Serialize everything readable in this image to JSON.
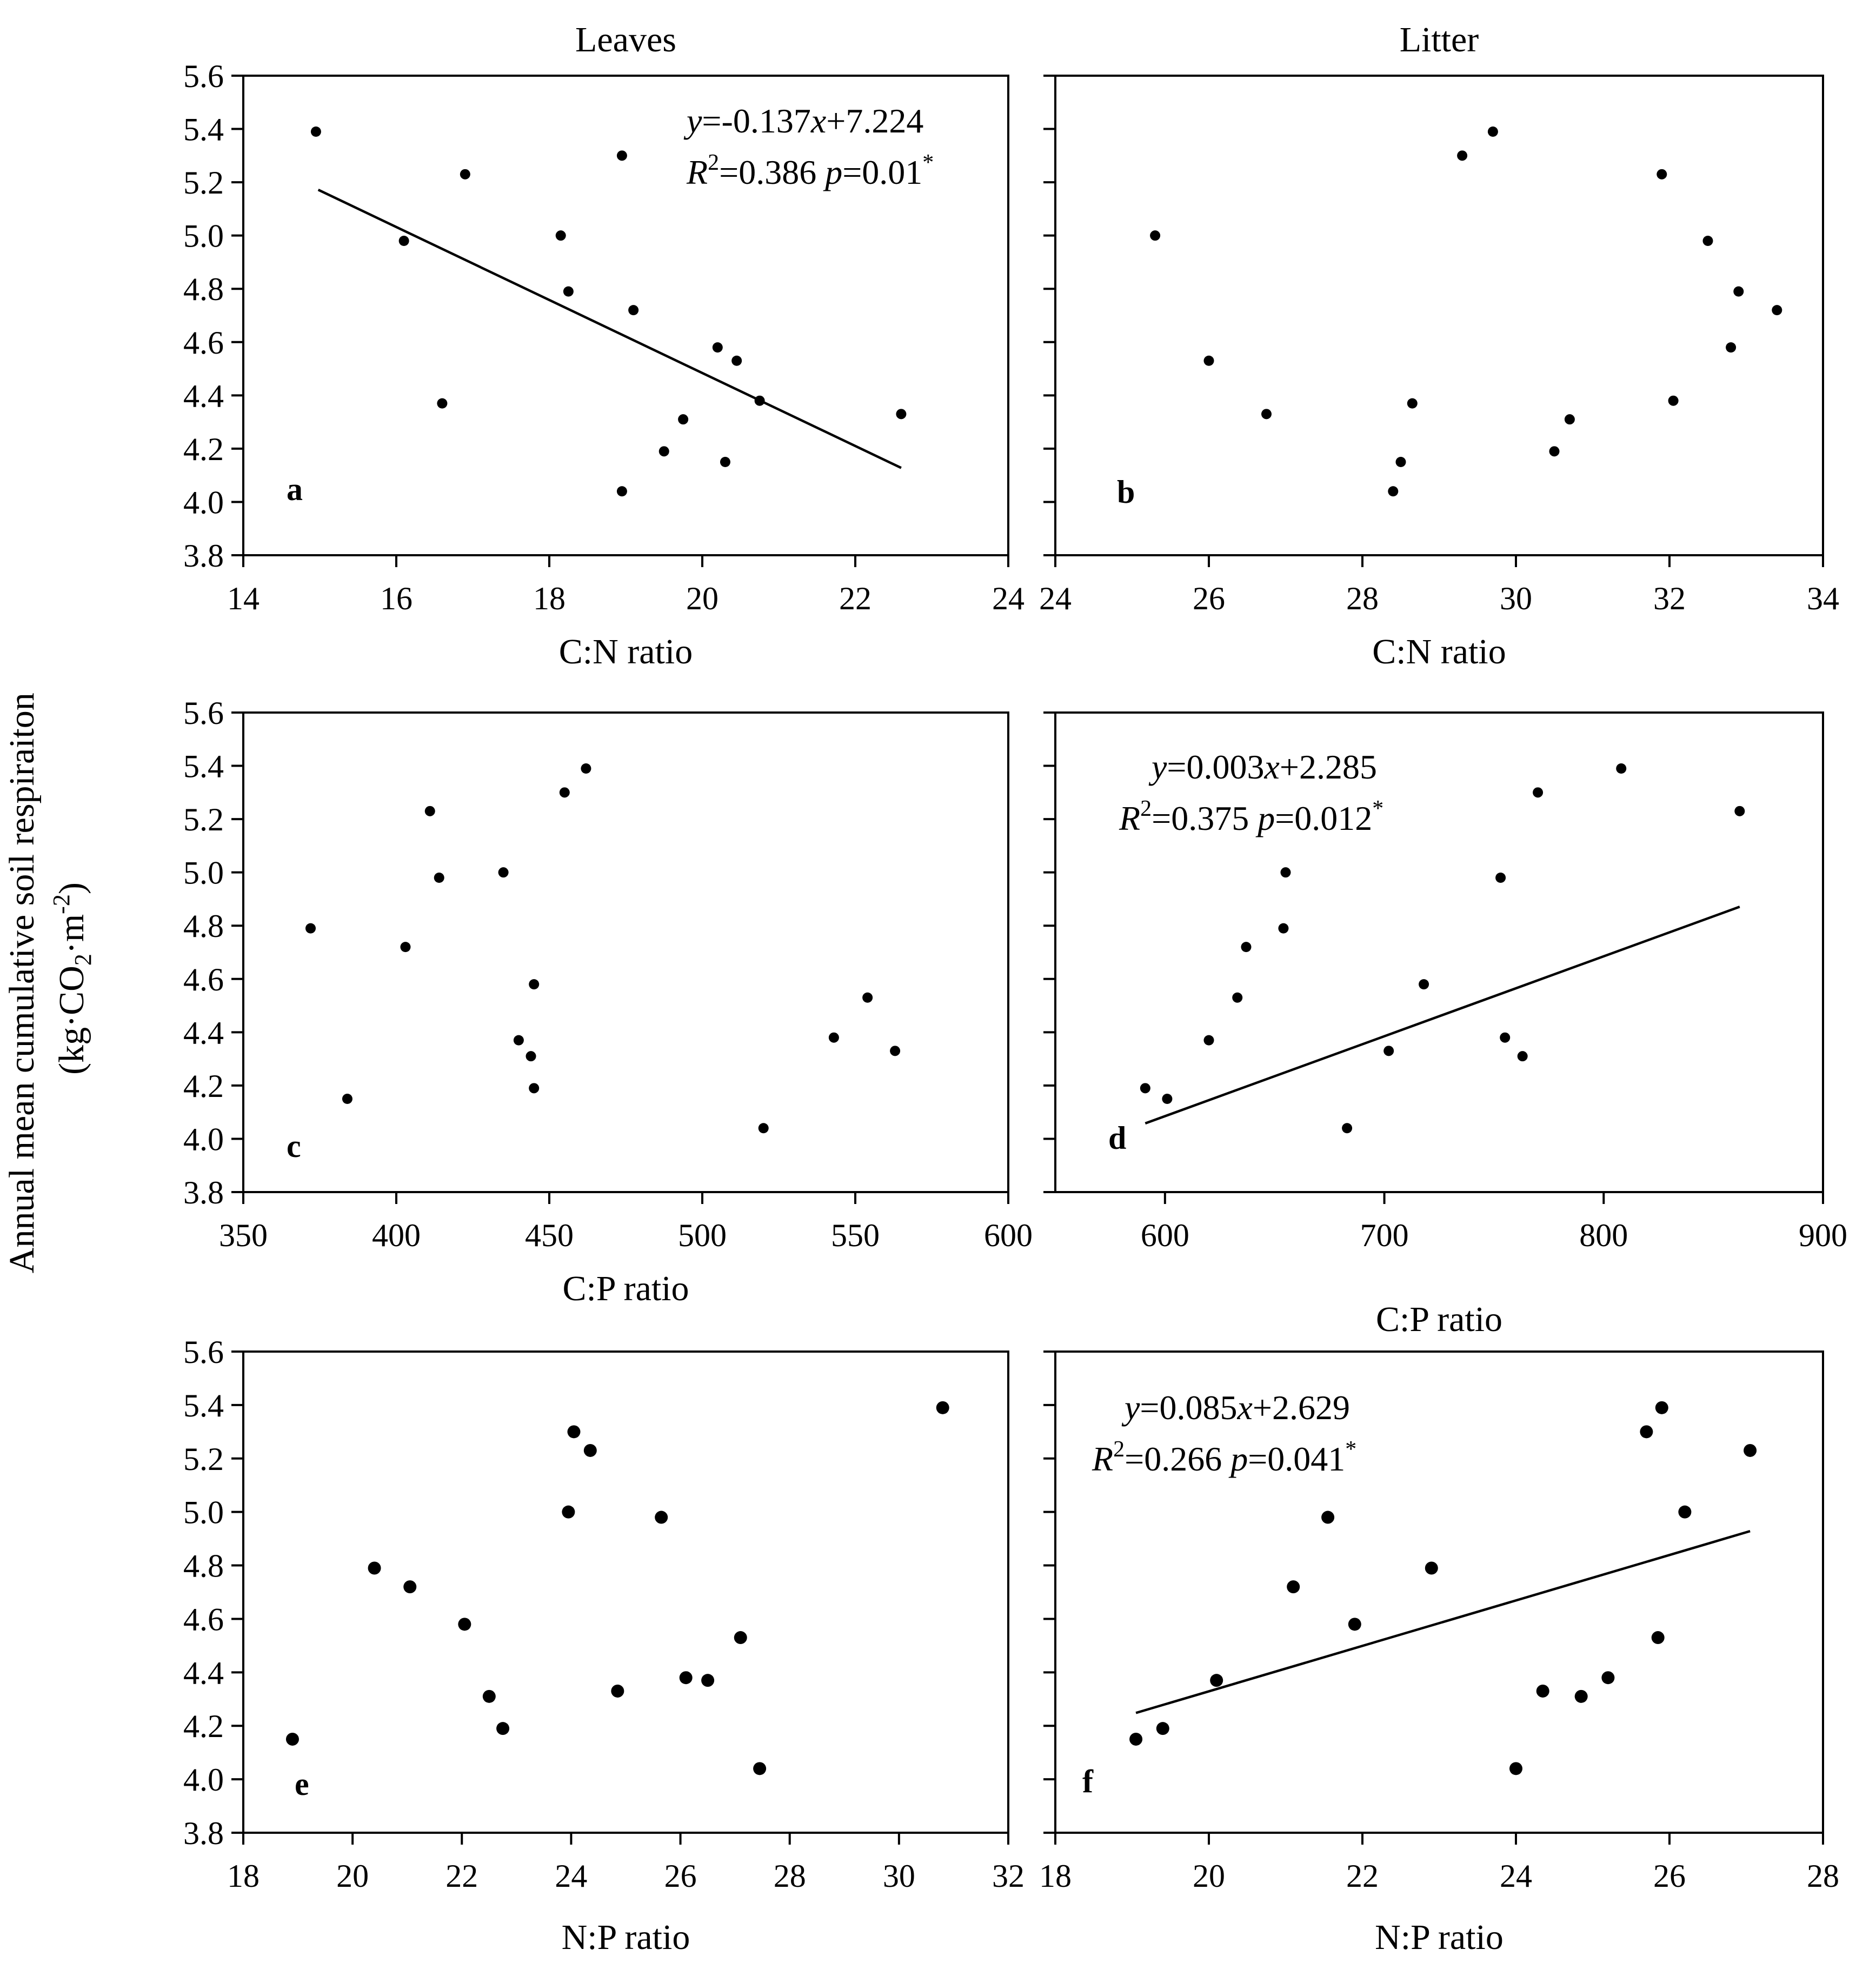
{
  "figure": {
    "y_axis_title_line1": "Annual mean cumulative soil respiraiton",
    "y_axis_title_line2_pre": "(kg·CO",
    "y_axis_title_line2_sub": "2",
    "y_axis_title_line2_mid": "·m",
    "y_axis_title_line2_sup": "-2",
    "y_axis_title_line2_post": ")"
  },
  "chart_data": [
    {
      "id": "a",
      "type": "scatter",
      "title": "Leaves",
      "panel_letter": "a",
      "xlabel": "C:N ratio",
      "ylabel": "Annual mean cumulative soil respiraiton (kg·CO2·m-2)",
      "xlim": [
        14,
        24
      ],
      "ylim": [
        3.8,
        5.6
      ],
      "xticks": [
        14,
        16,
        18,
        20,
        22,
        24
      ],
      "yticks": [
        3.8,
        4.0,
        4.2,
        4.4,
        4.6,
        4.8,
        5.0,
        5.2,
        5.4,
        5.6
      ],
      "ytick_labels_shown": true,
      "marker_size": "small",
      "x": [
        14.95,
        16.1,
        16.6,
        16.9,
        18.15,
        18.25,
        18.95,
        18.95,
        19.1,
        19.5,
        19.75,
        20.2,
        20.3,
        20.45,
        20.75,
        22.6
      ],
      "y": [
        5.39,
        4.98,
        4.37,
        5.23,
        5.0,
        4.79,
        5.3,
        4.04,
        4.72,
        4.19,
        4.31,
        4.58,
        4.15,
        4.53,
        4.38,
        4.33
      ],
      "regression": {
        "slope": -0.137,
        "intercept": 7.224,
        "x_range": [
          14.98,
          22.6
        ]
      },
      "equation": {
        "y_italic": "y",
        "eq_rest": "=-0.137",
        "x_italic": "x",
        "eq_tail": "+7.224",
        "r2_R": "R",
        "r2_sup": "2",
        "r2_val": "=0.386 ",
        "p_italic": "p",
        "p_val": "=0.01",
        "star": "*"
      }
    },
    {
      "id": "b",
      "type": "scatter",
      "title": "Litter",
      "panel_letter": "b",
      "xlabel": "C:N ratio",
      "ylabel": "",
      "xlim": [
        24,
        34
      ],
      "ylim": [
        3.8,
        5.6
      ],
      "xticks": [
        24,
        26,
        28,
        30,
        32,
        34
      ],
      "yticks": [
        3.8,
        4.0,
        4.2,
        4.4,
        4.6,
        4.8,
        5.0,
        5.2,
        5.4,
        5.6
      ],
      "ytick_labels_shown": false,
      "marker_size": "small",
      "x": [
        25.3,
        26.0,
        26.75,
        28.4,
        28.5,
        28.65,
        29.3,
        29.7,
        30.5,
        30.7,
        31.9,
        32.05,
        32.5,
        32.8,
        32.9,
        33.4
      ],
      "y": [
        5.0,
        4.53,
        4.33,
        4.04,
        4.15,
        4.37,
        5.3,
        5.39,
        4.19,
        4.31,
        5.23,
        4.38,
        4.98,
        4.58,
        4.79,
        4.72
      ],
      "regression": null,
      "equation": null
    },
    {
      "id": "c",
      "type": "scatter",
      "title": "",
      "panel_letter": "c",
      "xlabel": "C:P ratio",
      "ylabel": "",
      "xlim": [
        350,
        600
      ],
      "ylim": [
        3.8,
        5.6
      ],
      "xticks": [
        350,
        400,
        450,
        500,
        550,
        600
      ],
      "yticks": [
        3.8,
        4.0,
        4.2,
        4.4,
        4.6,
        4.8,
        5.0,
        5.2,
        5.4,
        5.6
      ],
      "ytick_labels_shown": true,
      "marker_size": "small",
      "x": [
        372,
        384,
        403,
        411,
        414,
        435,
        440,
        444,
        445,
        445,
        455,
        462,
        520,
        543,
        554,
        563
      ],
      "y": [
        4.79,
        4.15,
        4.72,
        5.23,
        4.98,
        5.0,
        4.37,
        4.31,
        4.19,
        4.58,
        5.3,
        5.39,
        4.04,
        4.38,
        4.53,
        4.33
      ],
      "regression": null,
      "equation": null
    },
    {
      "id": "d",
      "type": "scatter",
      "title": "",
      "panel_letter": "d",
      "xlabel": "C:P ratio",
      "ylabel": "",
      "xlim": [
        550,
        900
      ],
      "ylim": [
        3.8,
        5.6
      ],
      "xticks": [
        600,
        700,
        800,
        900
      ],
      "yticks": [
        3.8,
        4.0,
        4.2,
        4.4,
        4.6,
        4.8,
        5.0,
        5.2,
        5.4,
        5.6
      ],
      "ytick_labels_shown": false,
      "marker_size": "small",
      "x": [
        591,
        601,
        620,
        633,
        637,
        654,
        655,
        683,
        702,
        718,
        753,
        755,
        763,
        770,
        808,
        862
      ],
      "y": [
        4.19,
        4.15,
        4.37,
        4.53,
        4.72,
        4.79,
        5.0,
        4.04,
        4.33,
        4.58,
        4.98,
        4.38,
        4.31,
        5.3,
        5.39,
        5.23
      ],
      "regression": {
        "slope": 0.003,
        "intercept": 2.285,
        "x_range": [
          591,
          862
        ]
      },
      "equation": {
        "y_italic": "y",
        "eq_rest": "=0.003",
        "x_italic": "x",
        "eq_tail": "+2.285",
        "r2_R": "R",
        "r2_sup": "2",
        "r2_val": "=0.375 ",
        "p_italic": "p",
        "p_val": "=0.012",
        "star": "*"
      }
    },
    {
      "id": "e",
      "type": "scatter",
      "title": "",
      "panel_letter": "e",
      "xlabel": "N:P ratio",
      "ylabel": "",
      "xlim": [
        18,
        32
      ],
      "ylim": [
        3.8,
        5.6
      ],
      "xticks": [
        18,
        20,
        22,
        24,
        26,
        28,
        30,
        32
      ],
      "yticks": [
        3.8,
        4.0,
        4.2,
        4.4,
        4.6,
        4.8,
        5.0,
        5.2,
        5.4,
        5.6
      ],
      "ytick_labels_shown": true,
      "marker_size": "large",
      "x": [
        18.9,
        20.4,
        21.05,
        22.05,
        22.5,
        22.75,
        23.95,
        24.05,
        24.35,
        24.85,
        25.65,
        26.1,
        26.5,
        27.1,
        27.45,
        30.8
      ],
      "y": [
        4.15,
        4.79,
        4.72,
        4.58,
        4.31,
        4.19,
        5.0,
        5.3,
        5.23,
        4.33,
        4.98,
        4.38,
        4.37,
        4.53,
        4.04,
        5.39
      ],
      "regression": null,
      "equation": null
    },
    {
      "id": "f",
      "type": "scatter",
      "title": "",
      "panel_letter": "f",
      "xlabel": "N:P ratio",
      "ylabel": "",
      "xlim": [
        18,
        28
      ],
      "ylim": [
        3.8,
        5.6
      ],
      "xticks": [
        18,
        20,
        22,
        24,
        26,
        28
      ],
      "yticks": [
        3.8,
        4.0,
        4.2,
        4.4,
        4.6,
        4.8,
        5.0,
        5.2,
        5.4,
        5.6
      ],
      "ytick_labels_shown": false,
      "marker_size": "large",
      "x": [
        19.05,
        19.4,
        20.1,
        21.1,
        21.55,
        21.9,
        22.9,
        24.0,
        24.35,
        24.85,
        25.2,
        25.7,
        25.85,
        25.9,
        26.2,
        27.05
      ],
      "y": [
        4.15,
        4.19,
        4.37,
        4.72,
        4.98,
        4.58,
        4.79,
        4.04,
        4.33,
        4.31,
        4.38,
        5.3,
        4.53,
        5.39,
        5.0,
        5.23
      ],
      "regression": {
        "slope": 0.085,
        "intercept": 2.629,
        "x_range": [
          19.05,
          27.05
        ]
      },
      "equation": {
        "y_italic": "y",
        "eq_rest": "=0.085",
        "x_italic": "x",
        "eq_tail": "+2.629",
        "r2_R": "R",
        "r2_sup": "2",
        "r2_val": "=0.266 ",
        "p_italic": "p",
        "p_val": "=0.041",
        "star": "*"
      }
    }
  ]
}
